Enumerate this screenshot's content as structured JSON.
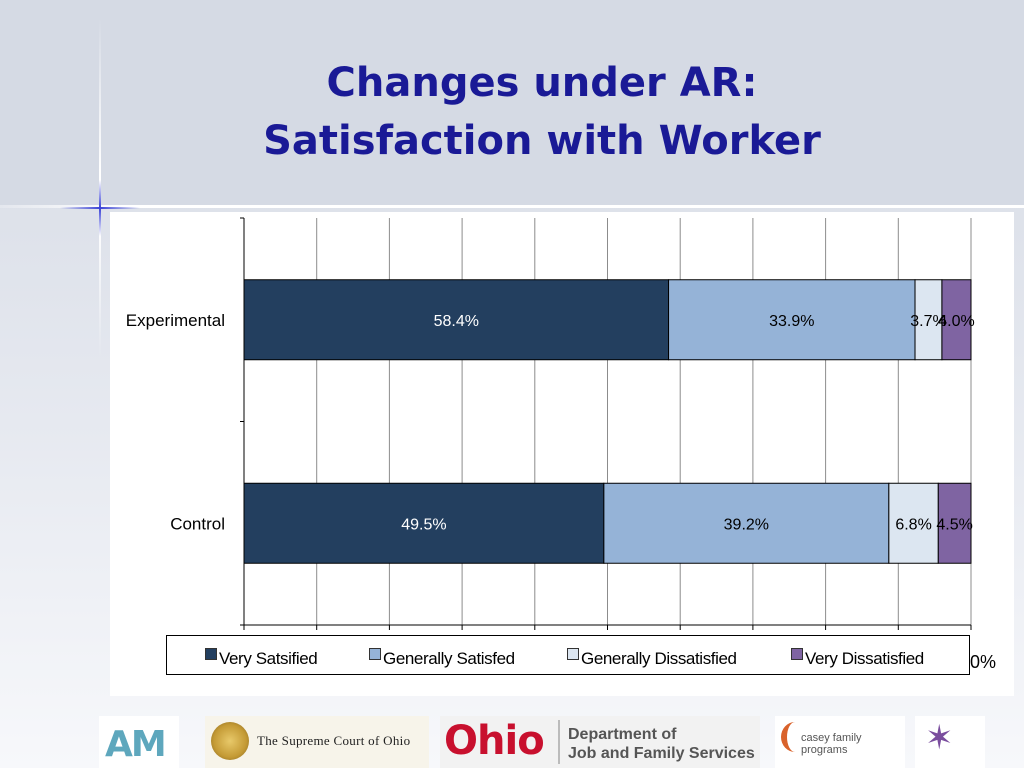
{
  "slide": {
    "title_line1": "Changes under AR:",
    "title_line2": "Satisfaction with Worker"
  },
  "chart_data": {
    "type": "bar",
    "orientation": "horizontal",
    "stacked": true,
    "categories": [
      "Experimental",
      "Control"
    ],
    "series": [
      {
        "name": "Very Satsified",
        "values": [
          58.4,
          49.5
        ],
        "labels": [
          "58.4%",
          "49.5%"
        ],
        "color": "#233f5f"
      },
      {
        "name": "Generally Satisfed",
        "values": [
          33.9,
          39.2
        ],
        "labels": [
          "33.9%",
          "39.2%"
        ],
        "color": "#95b3d7"
      },
      {
        "name": "Generally Dissatisfied",
        "values": [
          3.7,
          6.8
        ],
        "labels": [
          "3.7%",
          "6.8%"
        ],
        "color": "#dce6f1"
      },
      {
        "name": "Very Dissatisfied",
        "values": [
          4.0,
          4.5
        ],
        "labels": [
          "4.0%",
          "4.5%"
        ],
        "color": "#7f64a2"
      }
    ],
    "xlim": [
      0,
      100
    ],
    "x_tick_visible": "0%",
    "grid": true,
    "legend_position": "bottom"
  },
  "logos": {
    "am": "AM",
    "court": "The Supreme Court of Ohio",
    "ohio": "Ohio",
    "dept_line1": "Department of",
    "dept_line2": "Job and Family Services",
    "casey": "casey family programs",
    "icons": [
      "am-logo-icon",
      "court-seal-icon",
      "ohio-logo-icon",
      "casey-swoosh-icon",
      "childrens-trust-fund-icon"
    ]
  }
}
